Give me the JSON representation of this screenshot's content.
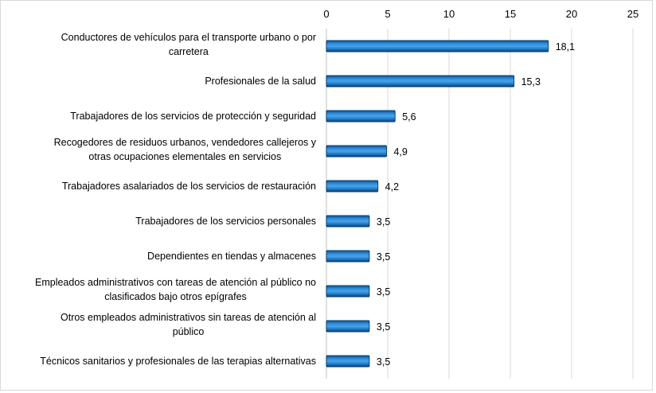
{
  "chart_data": {
    "type": "bar",
    "orientation": "horizontal",
    "title": "",
    "xlabel": "",
    "ylabel": "",
    "xlim": [
      0,
      25
    ],
    "xticks": [
      0,
      5,
      10,
      15,
      20,
      25
    ],
    "xtick_labels": [
      "0",
      "5",
      "10",
      "15",
      "20",
      "25"
    ],
    "axis_position": "top",
    "grid": true,
    "categories": [
      [
        "Conductores de vehículos para el transporte urbano o por",
        "carretera"
      ],
      [
        "Profesionales de la salud"
      ],
      [
        "Trabajadores de los servicios de protección y seguridad"
      ],
      [
        "Recogedores de residuos urbanos, vendedores callejeros y",
        "otras ocupaciones elementales en servicios"
      ],
      [
        "Trabajadores asalariados de los servicios de restauración"
      ],
      [
        "Trabajadores de los servicios personales"
      ],
      [
        "Dependientes en tiendas y almacenes"
      ],
      [
        "Empleados administrativos con tareas de atención al público no",
        "clasificados bajo otros epígrafes"
      ],
      [
        "Otros empleados administrativos sin tareas de atención al",
        "público"
      ],
      [
        "Técnicos sanitarios y profesionales de las terapias alternativas"
      ]
    ],
    "values": [
      18.1,
      15.3,
      5.6,
      4.9,
      4.2,
      3.5,
      3.5,
      3.5,
      3.5,
      3.5
    ],
    "value_labels": [
      "18,1",
      "15,3",
      "5,6",
      "4,9",
      "4,2",
      "3,5",
      "3,5",
      "3,5",
      "3,5",
      "3,5"
    ],
    "bar_color": "#1f7cc8",
    "bar_edge_color": "#0b3d6b"
  }
}
